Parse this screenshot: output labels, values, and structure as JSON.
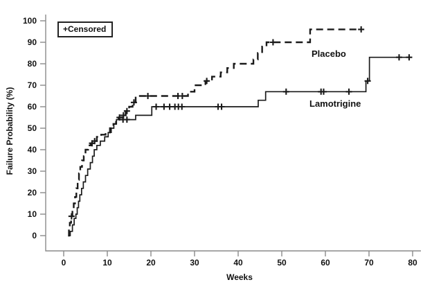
{
  "figure": {
    "ylabel": "Failure Probability (%)",
    "xlabel": "Weeks",
    "legend": "+Censored"
  },
  "colors": {
    "curve": "#1a1a1a",
    "axis": "#8a8a8a",
    "text": "#111111",
    "background": "#ffffff"
  },
  "chart_data": {
    "type": "line",
    "variant": "kaplan_meier_step",
    "title": "",
    "xlabel": "Weeks",
    "ylabel": "Failure Probability (%)",
    "xlim": [
      0,
      80
    ],
    "ylim": [
      0,
      100
    ],
    "xticks": [
      0,
      10,
      20,
      30,
      40,
      50,
      60,
      70,
      80
    ],
    "yticks": [
      0,
      10,
      20,
      30,
      40,
      50,
      60,
      70,
      80,
      90,
      100
    ],
    "grid": false,
    "legend_note": "+Censored",
    "series": [
      {
        "name": "Placebo",
        "line_style": "dashed",
        "steps": [
          [
            1,
            0
          ],
          [
            1.2,
            3
          ],
          [
            1.4,
            6
          ],
          [
            1.7,
            9
          ],
          [
            2,
            12
          ],
          [
            2.3,
            15
          ],
          [
            2.6,
            18
          ],
          [
            2.9,
            22
          ],
          [
            3.2,
            26
          ],
          [
            3.5,
            29
          ],
          [
            3.8,
            32
          ],
          [
            4.2,
            35
          ],
          [
            4.6,
            37
          ],
          [
            5,
            40
          ],
          [
            5.6,
            42
          ],
          [
            6.2,
            43
          ],
          [
            6.8,
            44
          ],
          [
            7.6,
            46
          ],
          [
            8.6,
            47
          ],
          [
            9.6,
            48
          ],
          [
            10.6,
            50
          ],
          [
            11.4,
            52
          ],
          [
            12,
            53
          ],
          [
            12.6,
            55
          ],
          [
            13.4,
            56
          ],
          [
            14.2,
            58
          ],
          [
            15,
            60
          ],
          [
            15.8,
            62
          ],
          [
            16.5,
            65
          ],
          [
            28.5,
            67
          ],
          [
            30,
            70
          ],
          [
            32.5,
            72
          ],
          [
            34,
            74
          ],
          [
            36,
            76
          ],
          [
            37.5,
            78
          ],
          [
            39,
            80
          ],
          [
            43.5,
            82
          ],
          [
            44.5,
            85
          ],
          [
            45.5,
            88
          ],
          [
            46.5,
            90
          ],
          [
            56.5,
            96
          ],
          [
            68.2,
            96
          ]
        ],
        "censor_marks": [
          [
            1.8,
            9
          ],
          [
            6.5,
            43
          ],
          [
            7.1,
            44
          ],
          [
            12.8,
            55
          ],
          [
            13.7,
            56
          ],
          [
            14.5,
            58
          ],
          [
            16.1,
            62
          ],
          [
            19.3,
            65
          ],
          [
            26.2,
            65
          ],
          [
            27.2,
            65
          ],
          [
            32.8,
            72
          ],
          [
            48,
            90
          ],
          [
            68.2,
            96
          ]
        ]
      },
      {
        "name": "Lamotrigine",
        "line_style": "solid",
        "steps": [
          [
            1.1,
            0
          ],
          [
            1.5,
            2
          ],
          [
            2,
            5
          ],
          [
            2.4,
            8
          ],
          [
            2.8,
            10
          ],
          [
            3.1,
            13
          ],
          [
            3.4,
            16
          ],
          [
            3.7,
            19
          ],
          [
            4.1,
            22
          ],
          [
            4.5,
            25
          ],
          [
            5,
            28
          ],
          [
            5.5,
            31
          ],
          [
            6.1,
            34
          ],
          [
            6.6,
            37
          ],
          [
            7,
            40
          ],
          [
            7.6,
            42
          ],
          [
            8.4,
            44
          ],
          [
            9.4,
            46
          ],
          [
            10.2,
            48
          ],
          [
            10.9,
            50
          ],
          [
            11.5,
            52
          ],
          [
            12.1,
            54
          ],
          [
            16.5,
            56
          ],
          [
            20.2,
            60
          ],
          [
            44.6,
            63
          ],
          [
            46.3,
            67
          ],
          [
            69.3,
            72
          ],
          [
            70.1,
            83
          ],
          [
            79.4,
            83
          ]
        ],
        "censor_marks": [
          [
            13.6,
            54
          ],
          [
            14.5,
            54
          ],
          [
            21.2,
            60
          ],
          [
            23,
            60
          ],
          [
            24.3,
            60
          ],
          [
            25.5,
            60
          ],
          [
            26.3,
            60
          ],
          [
            27.1,
            60
          ],
          [
            35.4,
            60
          ],
          [
            36.2,
            60
          ],
          [
            51,
            67
          ],
          [
            59,
            67
          ],
          [
            59.6,
            67
          ],
          [
            65.4,
            67
          ],
          [
            69.7,
            72
          ],
          [
            76.9,
            83
          ],
          [
            79.2,
            83
          ]
        ]
      }
    ]
  }
}
